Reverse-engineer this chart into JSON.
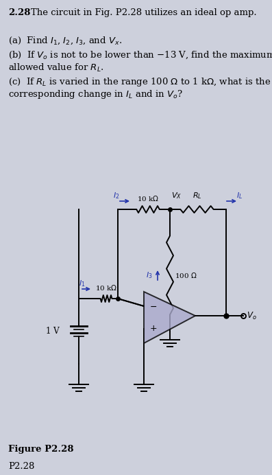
{
  "bg_color": "#cdd0dc",
  "text_color": "#000000",
  "arrow_color": "#2233aa",
  "wire_color": "#000000",
  "fig_width": 3.97,
  "fig_height": 6.92,
  "dpi": 100,
  "figure_label": "Figure P2.28"
}
